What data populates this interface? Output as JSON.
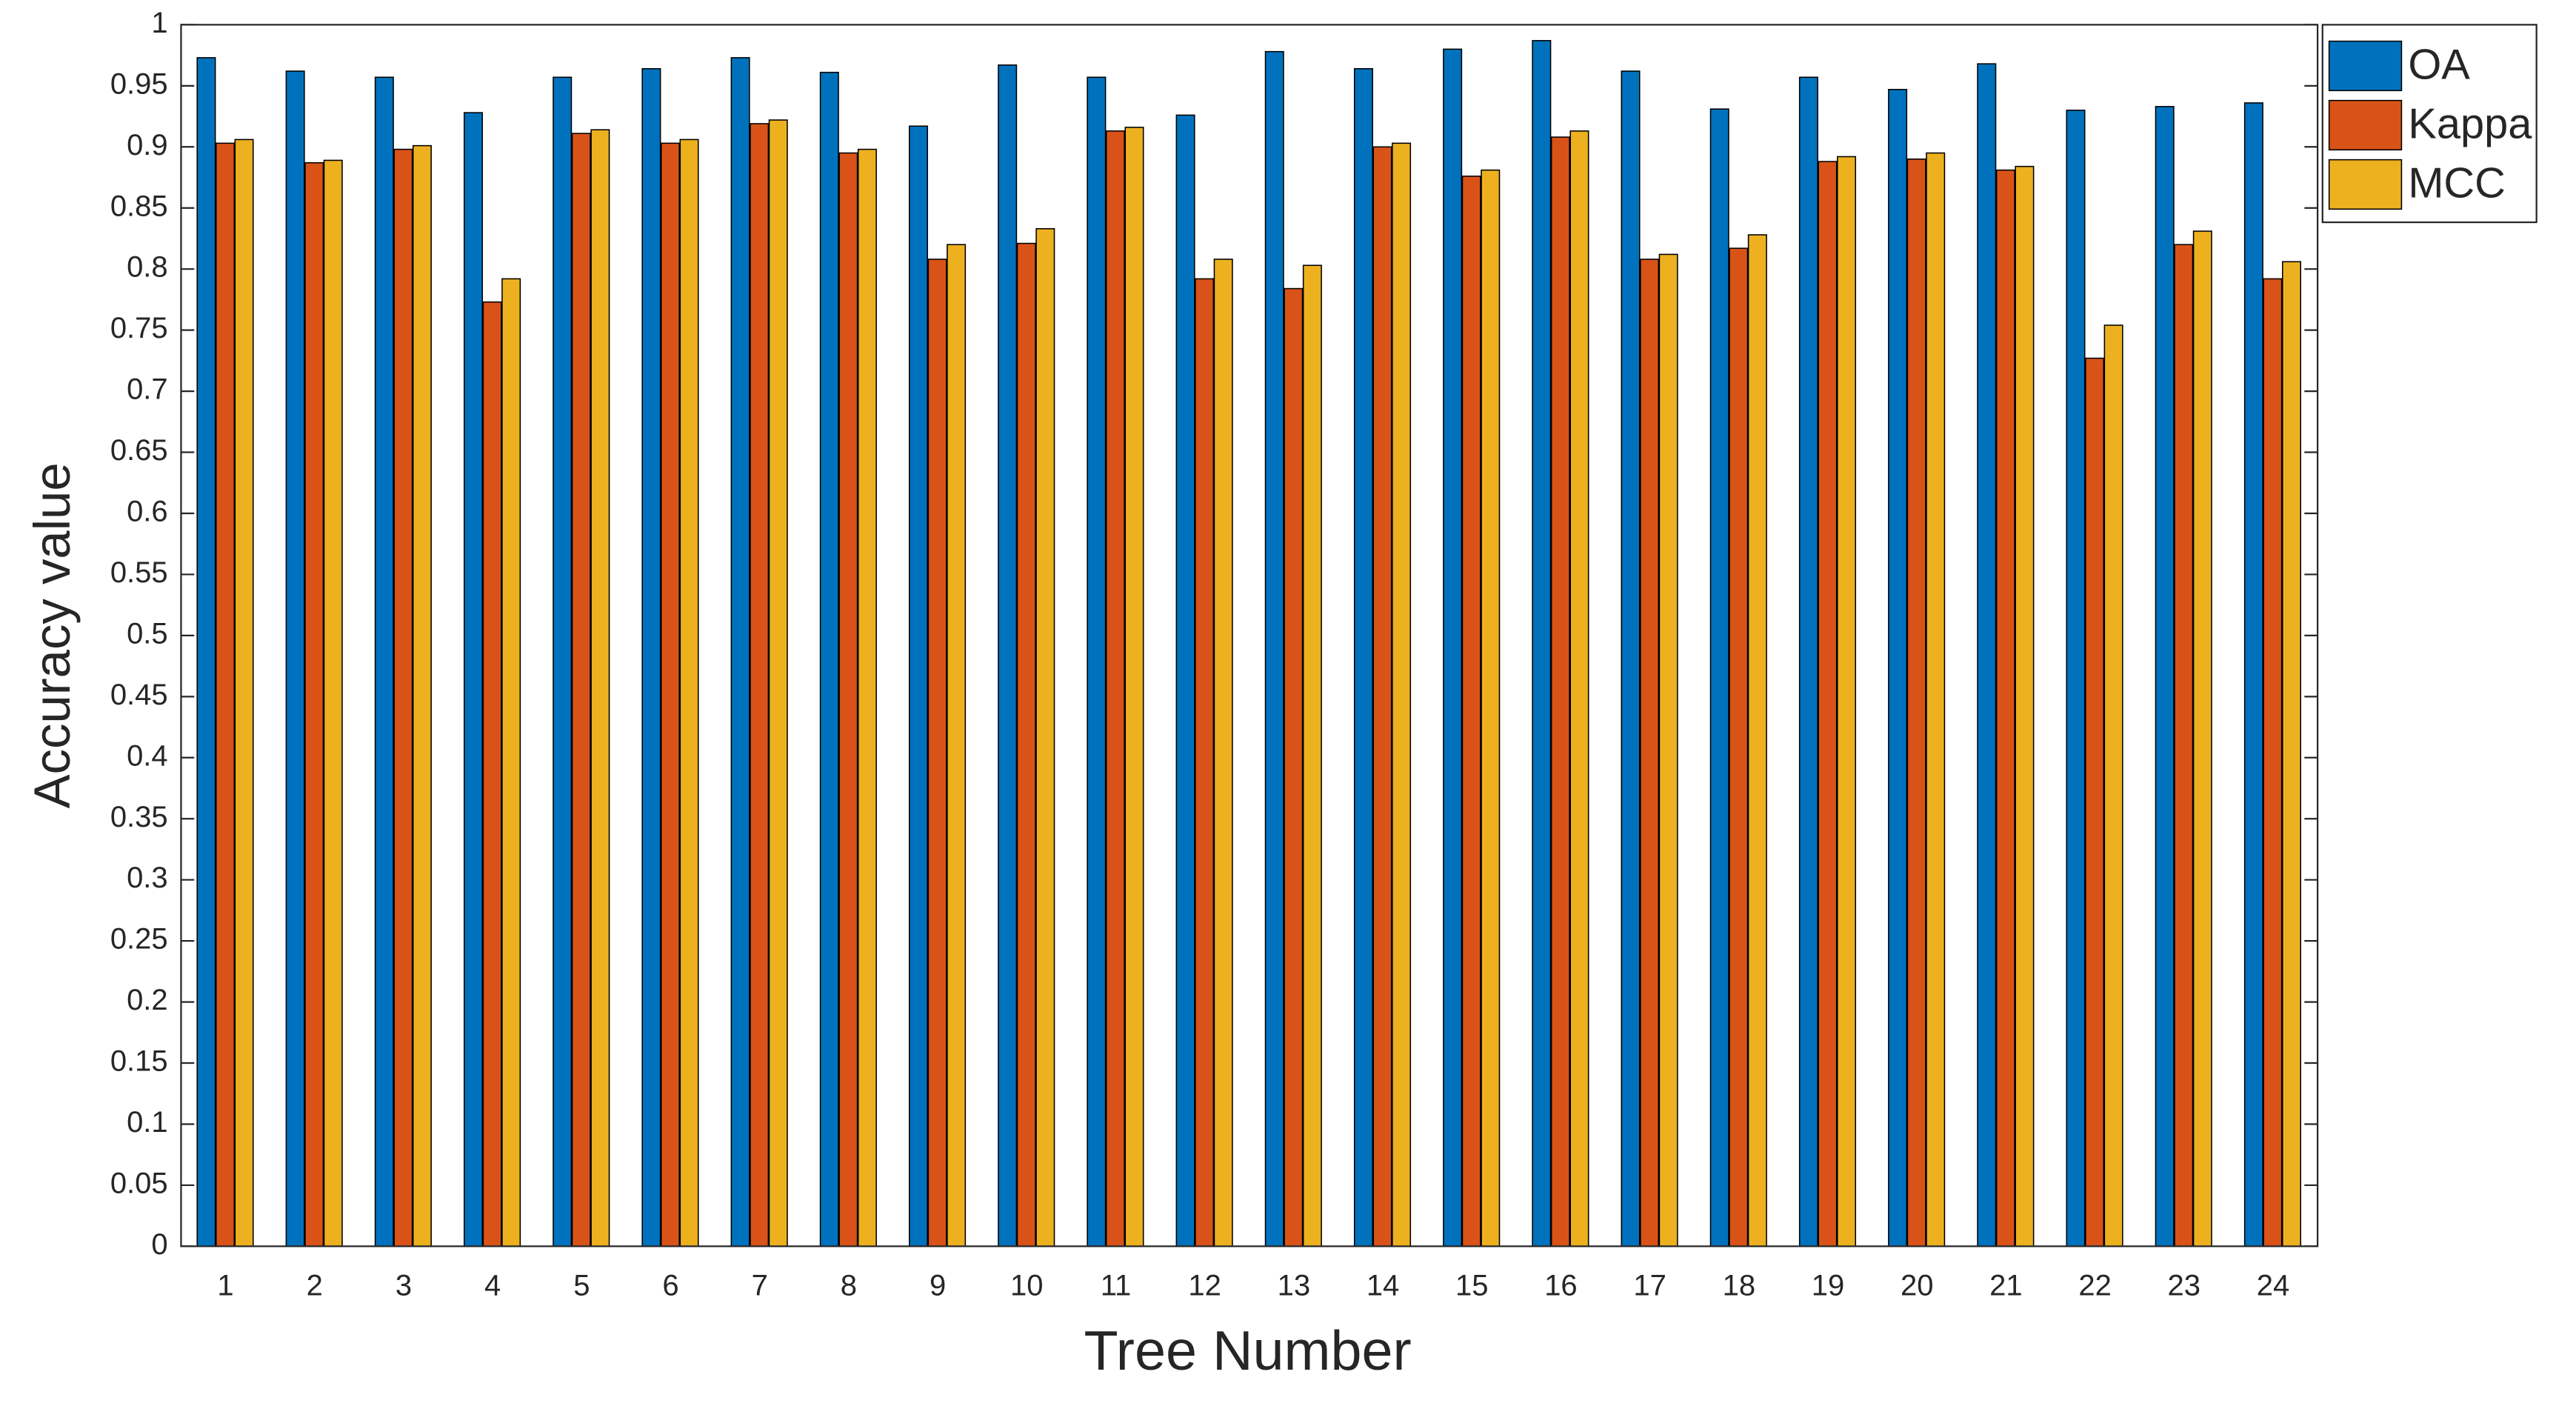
{
  "chart_data": {
    "type": "bar",
    "xlabel": "Tree Number",
    "ylabel": "Accuracy value",
    "categories": [
      "1",
      "2",
      "3",
      "4",
      "5",
      "6",
      "7",
      "8",
      "9",
      "10",
      "11",
      "12",
      "13",
      "14",
      "15",
      "16",
      "17",
      "18",
      "19",
      "20",
      "21",
      "22",
      "23",
      "24"
    ],
    "series": [
      {
        "name": "OA",
        "color": "#0072bd",
        "values": [
          0.973,
          0.962,
          0.957,
          0.928,
          0.957,
          0.964,
          0.973,
          0.961,
          0.917,
          0.967,
          0.957,
          0.926,
          0.978,
          0.964,
          0.98,
          0.987,
          0.962,
          0.931,
          0.957,
          0.947,
          0.968,
          0.93,
          0.933,
          0.936
        ]
      },
      {
        "name": "Kappa",
        "color": "#d95319",
        "values": [
          0.903,
          0.887,
          0.898,
          0.773,
          0.911,
          0.903,
          0.919,
          0.895,
          0.808,
          0.821,
          0.913,
          0.792,
          0.784,
          0.9,
          0.876,
          0.908,
          0.808,
          0.817,
          0.888,
          0.89,
          0.881,
          0.727,
          0.82,
          0.792
        ]
      },
      {
        "name": "MCC",
        "color": "#edb120",
        "values": [
          0.906,
          0.889,
          0.901,
          0.792,
          0.914,
          0.906,
          0.922,
          0.898,
          0.82,
          0.833,
          0.916,
          0.808,
          0.803,
          0.903,
          0.881,
          0.913,
          0.812,
          0.828,
          0.892,
          0.895,
          0.884,
          0.754,
          0.831,
          0.806
        ]
      }
    ],
    "ylim": [
      0,
      1
    ],
    "yticks": [
      0,
      0.05,
      0.1,
      0.15,
      0.2,
      0.25,
      0.3,
      0.35,
      0.4,
      0.45,
      0.5,
      0.55,
      0.6,
      0.65,
      0.7,
      0.75,
      0.8,
      0.85,
      0.9,
      0.95,
      1
    ],
    "grid": false,
    "legend": "northeastoutside"
  }
}
